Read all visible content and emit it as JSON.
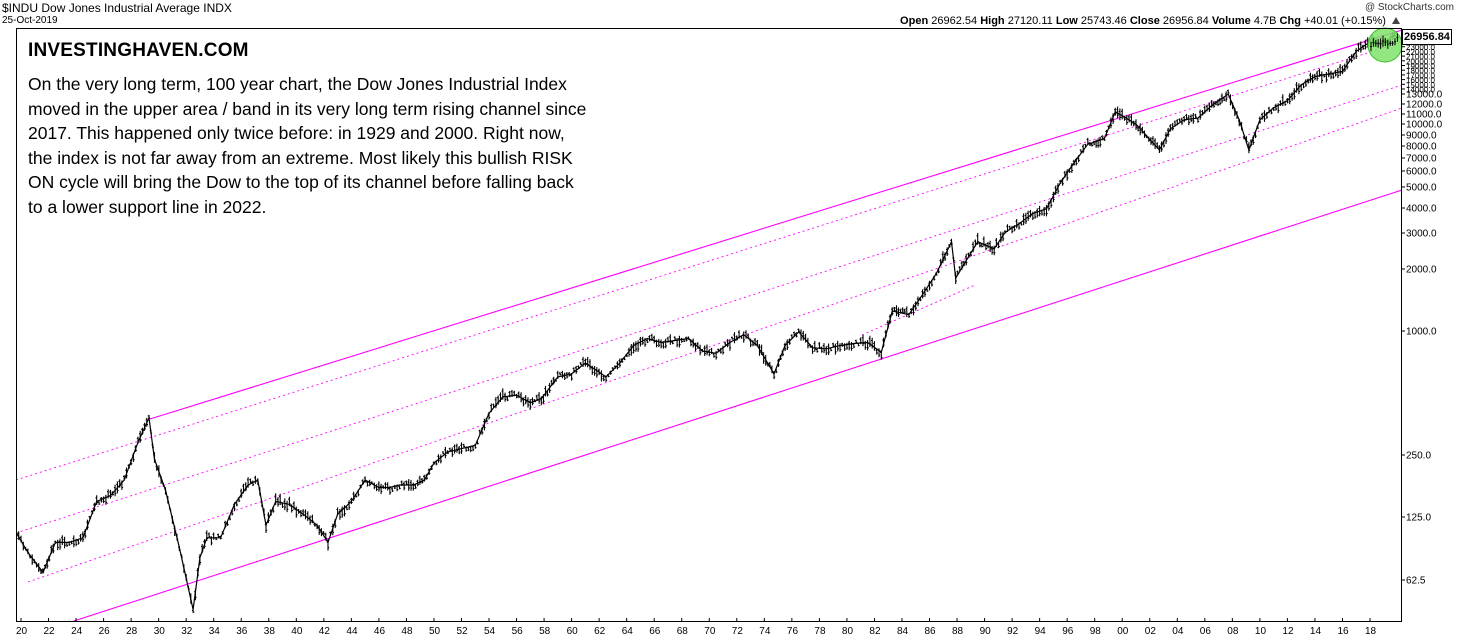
{
  "header": {
    "symbol": "$INDU",
    "name": "Dow Jones Industrial Average",
    "exchange": "INDX",
    "date": "25-Oct-2019",
    "copyright": "@ StockCharts.com",
    "quote": {
      "open_label": "Open",
      "open": "26962.54",
      "high_label": "High",
      "high": "27120.11",
      "low_label": "Low",
      "low": "25743.46",
      "close_label": "Close",
      "close": "26956.84",
      "volume_label": "Volume",
      "volume": "4.7B",
      "chg_label": "Chg",
      "chg": "+40.01 (+0.15%)"
    }
  },
  "annotation": {
    "brand": "INVESTINGHAVEN.COM",
    "text": "On the very long term, 100 year chart, the Dow Jones Industrial Index moved in the upper area / band in its very long term rising channel since 2017. This happened only twice before: in 1929 and 2000. Right now, the index is not far away from an extreme. Most likely this bullish RISK ON cycle will bring the Dow to the top of its channel before falling back to a lower support line in 2022."
  },
  "colors": {
    "channel": "#ff00ff",
    "price": "#000000",
    "highlight_fill": "#7fe36a",
    "highlight_stroke": "#3fbf2f"
  },
  "chart_data": {
    "type": "line",
    "y_scale": "log",
    "last_value_label": "26956.84",
    "y_ticks": [
      62.5,
      125.0,
      250.0,
      1000.0,
      2000.0,
      3000.0,
      4000.0,
      5000.0,
      6000.0,
      7000.0,
      8000.0,
      9000.0,
      10000.0,
      11000.0,
      12000.0,
      13000.0,
      14000.0,
      15000.0,
      16000.0,
      17000.0,
      18000.0,
      19000.0,
      20000.0,
      21000.0,
      22000.0,
      23000.0,
      24000.0,
      25000.0
    ],
    "y_tick_labels": [
      "62.5",
      "125.0",
      "250.0",
      "1000.0",
      "2000.0",
      "3000.0",
      "4000.0",
      "5000.0",
      "6000.0",
      "7000.0",
      "8000.0",
      "9000.0",
      "10000.0",
      "11000.0",
      "12000.0",
      "13000.0",
      "14000.0",
      "15000.0",
      "16000.0",
      "17000.0",
      "18000.0",
      "19000.0",
      "20000.0",
      "21000.0",
      "22000.0",
      "23000.0",
      "24000.0",
      "25000.0"
    ],
    "x_tick_labels": [
      "20",
      "22",
      "24",
      "26",
      "28",
      "30",
      "32",
      "34",
      "36",
      "38",
      "40",
      "42",
      "44",
      "46",
      "48",
      "50",
      "52",
      "54",
      "56",
      "58",
      "60",
      "62",
      "64",
      "66",
      "68",
      "70",
      "72",
      "74",
      "76",
      "78",
      "80",
      "82",
      "84",
      "86",
      "88",
      "90",
      "92",
      "94",
      "96",
      "98",
      "00",
      "02",
      "04",
      "06",
      "08",
      "10",
      "12",
      "14",
      "16",
      "18"
    ],
    "x_ticks": [
      1920,
      1922,
      1924,
      1926,
      1928,
      1930,
      1932,
      1934,
      1936,
      1938,
      1940,
      1942,
      1944,
      1946,
      1948,
      1950,
      1952,
      1954,
      1956,
      1958,
      1960,
      1962,
      1964,
      1966,
      1968,
      1970,
      1972,
      1974,
      1976,
      1978,
      1980,
      1982,
      1984,
      1986,
      1988,
      1990,
      1992,
      1994,
      1996,
      1998,
      2000,
      2002,
      2004,
      2006,
      2008,
      2010,
      2012,
      2014,
      2016,
      2018
    ],
    "series": [
      {
        "x": [
          1919.5,
          1920.5,
          1921.6,
          1922.5,
          1923.5,
          1924.5,
          1925.5,
          1926.5,
          1927.5,
          1928.5,
          1929.3,
          1929.7,
          1930.5,
          1931.5,
          1932.5,
          1933.0,
          1933.5,
          1934.5,
          1935.5,
          1936.5,
          1937.2,
          1937.8,
          1938.5,
          1939.5,
          1940.5,
          1941.5,
          1942.3,
          1943.0,
          1944.0,
          1945.0,
          1946.0,
          1946.8,
          1947.5,
          1948.5,
          1949.3,
          1950.0,
          1951.0,
          1952.0,
          1953.0,
          1954.0,
          1955.0,
          1956.0,
          1957.0,
          1957.8,
          1959.0,
          1960.0,
          1961.0,
          1962.5,
          1963.5,
          1964.5,
          1965.5,
          1966.5,
          1967.5,
          1968.5,
          1969.5,
          1970.5,
          1971.5,
          1972.5,
          1973.5,
          1974.7,
          1975.5,
          1976.5,
          1977.5,
          1978.5,
          1979.5,
          1980.5,
          1981.5,
          1982.5,
          1983.3,
          1984.5,
          1985.5,
          1986.5,
          1987.6,
          1987.9,
          1988.5,
          1989.5,
          1990.7,
          1991.5,
          1992.5,
          1993.5,
          1994.5,
          1995.5,
          1996.5,
          1997.5,
          1998.7,
          1999.5,
          2000.0,
          2001.0,
          2002.7,
          2003.5,
          2004.5,
          2005.5,
          2006.5,
          2007.7,
          2008.5,
          2009.2,
          2010.0,
          2011.0,
          2012.0,
          2013.0,
          2014.0,
          2015.0,
          2016.0,
          2017.0,
          2018.0,
          2018.9,
          2019.8
        ],
        "values": [
          110,
          85,
          68,
          95,
          95,
          100,
          150,
          160,
          190,
          290,
          380,
          240,
          170,
          90,
          45,
          80,
          100,
          100,
          145,
          180,
          190,
          115,
          150,
          145,
          130,
          115,
          95,
          130,
          150,
          190,
          175,
          175,
          180,
          180,
          190,
          230,
          260,
          270,
          280,
          400,
          480,
          490,
          450,
          470,
          600,
          620,
          700,
          600,
          700,
          850,
          920,
          880,
          900,
          920,
          800,
          780,
          880,
          960,
          850,
          620,
          850,
          990,
          830,
          820,
          850,
          870,
          880,
          790,
          1250,
          1200,
          1500,
          1900,
          2700,
          1800,
          2100,
          2700,
          2500,
          3000,
          3300,
          3700,
          3900,
          5200,
          6500,
          8000,
          8500,
          11500,
          11000,
          10000,
          7500,
          9500,
          10500,
          10700,
          12300,
          14000,
          10500,
          7500,
          10500,
          12000,
          13000,
          15500,
          17000,
          17500,
          18000,
          22500,
          25000,
          24500,
          27000
        ]
      }
    ],
    "annotations": [
      {
        "type": "channel-line",
        "style": "solid"
      },
      {
        "type": "channel-line",
        "style": "dotted"
      },
      {
        "type": "highlight-circle",
        "label": "current level"
      }
    ]
  }
}
